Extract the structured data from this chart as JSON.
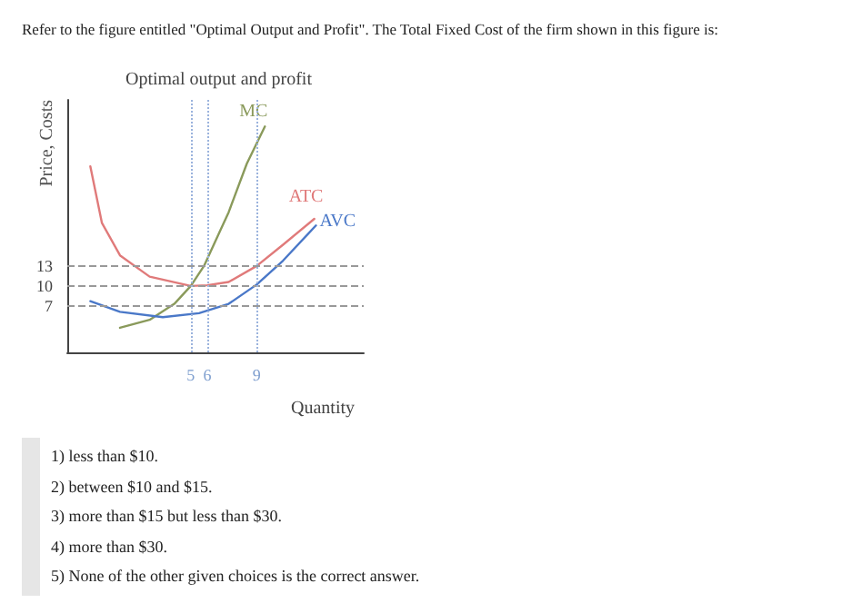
{
  "chart_data": {
    "type": "line",
    "title": "Optimal output and profit",
    "xlabel": "Quantity",
    "ylabel": "Price, Costs",
    "annotations": [
      "Refer to the figure entitled \"Optimal Output and Profit\". The Total Fixed Cost of the firm shown in this figure is:",
      "1) less than $10.",
      "2) between $10 and $15.",
      "3) more than $15 but less than $30.",
      "4) more than $30.",
      "5) None of the other given choices is the correct answer."
    ],
    "xlim": [
      -2.5,
      15.5
    ],
    "ylim": [
      0,
      38
    ],
    "xticks": [
      5,
      6,
      9
    ],
    "yticks": [
      7,
      10,
      13
    ],
    "grid": false,
    "legend": false,
    "marker": "none",
    "line_style": "solid",
    "series": [
      {
        "name": "MC",
        "color": "#8a9a5b",
        "x": [
          0.7,
          2.5,
          4,
          5,
          5.8,
          7.3,
          8.4,
          9.5
        ],
        "values": [
          3.7,
          4.9,
          7.3,
          10,
          13,
          21.1,
          28.4,
          34
        ]
      },
      {
        "name": "ATC",
        "color": "#e07a7a",
        "x": [
          -1.1,
          -0.4,
          0.7,
          2.5,
          5,
          6,
          7.3,
          9,
          10.6,
          12.5
        ],
        "values": [
          28,
          19.5,
          14.6,
          11.4,
          10,
          10.1,
          10.6,
          13,
          16.2,
          20.1
        ]
      },
      {
        "name": "AVC",
        "color": "#4a78c8",
        "x": [
          -1.1,
          0.7,
          3.3,
          5.5,
          7.3,
          9,
          10.6,
          12.6
        ],
        "values": [
          7.7,
          6.1,
          5.3,
          5.9,
          7.3,
          10.2,
          13.8,
          19.1
        ]
      }
    ],
    "ref_lines": [
      {
        "axis": "y",
        "value": 13,
        "color": "#999999",
        "line_style": "dashed"
      },
      {
        "axis": "y",
        "value": 10,
        "color": "#999999",
        "line_style": "dashed"
      },
      {
        "axis": "y",
        "value": 7,
        "color": "#999999",
        "line_style": "dashed"
      },
      {
        "axis": "x",
        "value": 5,
        "color": "#9bb3dd",
        "line_style": "dotted"
      },
      {
        "axis": "x",
        "value": 6,
        "color": "#9bb3dd",
        "line_style": "dotted"
      },
      {
        "axis": "x",
        "value": 9,
        "color": "#9bb3dd",
        "line_style": "dotted"
      }
    ]
  }
}
